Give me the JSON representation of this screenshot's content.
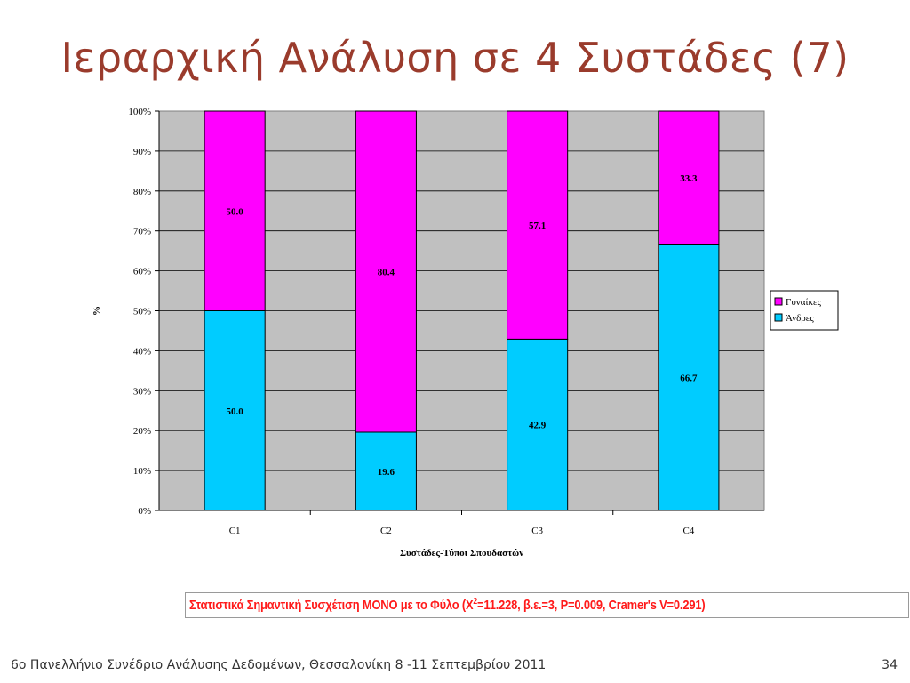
{
  "slide": {
    "title": "Ιεραρχική Ανάλυση σε 4 Συστάδες (7)",
    "footer_left": "6ο Πανελλήνιο Συνέδριο Ανάλυσης Δεδομένων,  Θεσσαλονίκη 8 -11 Σεπτεμβρίου 2011",
    "page_number": "34"
  },
  "stat_note": {
    "prefix": "Στατιστικά Σημαντική Συσχέτιση ΜΟΝΟ με το Φύλο (Χ",
    "sup": "2",
    "suffix": "=11.228, β.ε.=3, P=0.009, Cramer's V=0.291)"
  },
  "chart_data": {
    "type": "bar",
    "stacked": true,
    "percent_stacked": true,
    "categories": [
      "C1",
      "C2",
      "C3",
      "C4"
    ],
    "series": [
      {
        "name": "Άνδρες",
        "values": [
          50.0,
          19.6,
          42.9,
          66.7
        ],
        "color": "#00ccff"
      },
      {
        "name": "Γυναίκες",
        "values": [
          50.0,
          80.4,
          57.1,
          33.3
        ],
        "color": "#ff00ff"
      }
    ],
    "data_labels": [
      [
        "50.0",
        "19.6",
        "42.9",
        "66.7"
      ],
      [
        "50.0",
        "80.4",
        "57.1",
        "33.3"
      ]
    ],
    "xlabel": "Συστάδες-Τύποι Σπουδαστών",
    "ylabel": "%",
    "ylim": [
      0,
      100
    ],
    "y_ticks": [
      "0%",
      "10%",
      "20%",
      "30%",
      "40%",
      "50%",
      "60%",
      "70%",
      "80%",
      "90%",
      "100%"
    ],
    "grid": true,
    "legend_position": "right",
    "legend_order": [
      "Γυναίκες",
      "Άνδρες"
    ],
    "plot_background": "#c0c0c0"
  }
}
